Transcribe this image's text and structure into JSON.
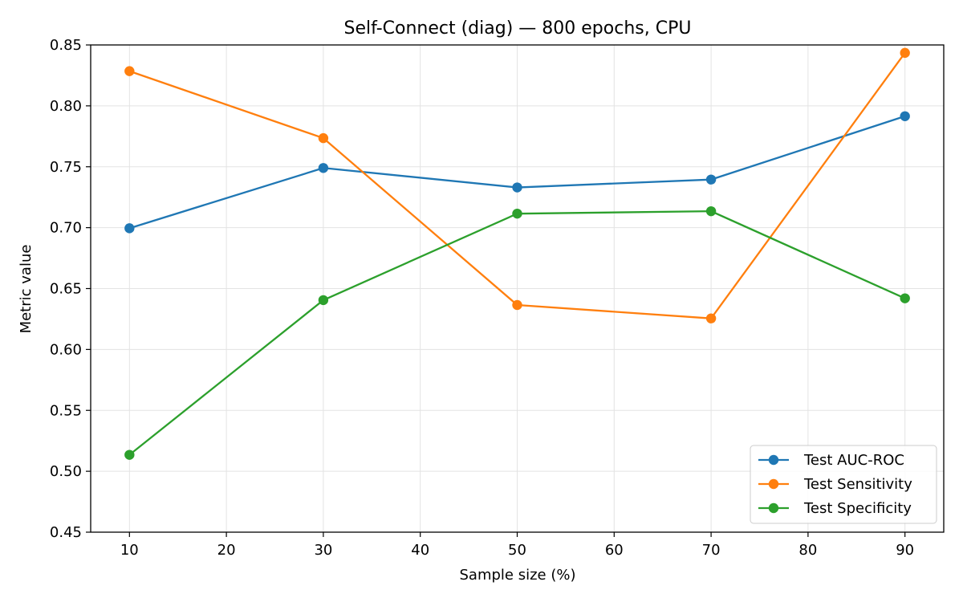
{
  "chart_data": {
    "type": "line",
    "title": "Self-Connect (diag) — 800 epochs, CPU",
    "xlabel": "Sample size (%)",
    "ylabel": "Metric value",
    "x": [
      10,
      30,
      50,
      70,
      90
    ],
    "xlim": [
      6,
      94
    ],
    "ylim": [
      0.45,
      0.85
    ],
    "xticks": [
      "10",
      "20",
      "30",
      "40",
      "50",
      "60",
      "70",
      "80",
      "90"
    ],
    "yticks": [
      "0.45",
      "0.50",
      "0.55",
      "0.60",
      "0.65",
      "0.70",
      "0.75",
      "0.80",
      "0.85"
    ],
    "grid": true,
    "legend_position": "lower-right",
    "series": [
      {
        "name": "Test AUC-ROC",
        "color": "#1f77b4",
        "values": [
          0.6995,
          0.749,
          0.733,
          0.7395,
          0.7915
        ]
      },
      {
        "name": "Test Sensitivity",
        "color": "#ff7f0e",
        "values": [
          0.8285,
          0.7735,
          0.6365,
          0.6255,
          0.8435
        ]
      },
      {
        "name": "Test Specificity",
        "color": "#2ca02c",
        "values": [
          0.5135,
          0.6405,
          0.7115,
          0.7135,
          0.642
        ]
      }
    ]
  }
}
